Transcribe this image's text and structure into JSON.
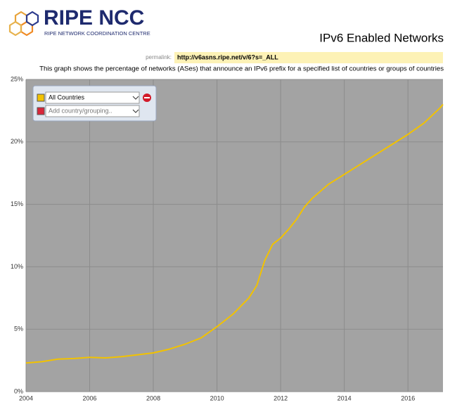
{
  "header": {
    "logo_text": "RIPE NCC",
    "logo_subtitle": "RIPE NETWORK COORDINATION CENTRE"
  },
  "permalink": {
    "label": "permalink:",
    "url": "http://v6asns.ripe.net/v/6?s=_ALL"
  },
  "controls": {
    "add_placeholder": "Add country/grouping.."
  },
  "chart_data": {
    "type": "line",
    "title": "IPv6 Enabled Networks",
    "subtitle": "This graph shows the percentage of networks (ASes) that announce an IPv6 prefix for a specified list of countries or groups of countries",
    "x": [
      2004,
      2004.5,
      2005,
      2005.5,
      2006,
      2006.5,
      2007,
      2007.5,
      2008,
      2008.5,
      2009,
      2009.5,
      2010,
      2010.5,
      2011,
      2011.25,
      2011.5,
      2011.75,
      2012,
      2012.25,
      2012.5,
      2012.75,
      2013,
      2013.5,
      2014,
      2014.5,
      2015,
      2015.5,
      2016,
      2016.5,
      2017,
      2017.1
    ],
    "series": [
      {
        "name": "All Countries",
        "color": "#f2c200",
        "values": [
          2.3,
          2.4,
          2.6,
          2.65,
          2.75,
          2.7,
          2.8,
          2.95,
          3.1,
          3.4,
          3.8,
          4.3,
          5.2,
          6.2,
          7.5,
          8.5,
          10.5,
          11.8,
          12.3,
          13.0,
          13.8,
          14.8,
          15.5,
          16.6,
          17.4,
          18.2,
          19.0,
          19.8,
          20.6,
          21.5,
          22.7,
          23.0
        ]
      }
    ],
    "xlim": [
      2004,
      2017.1
    ],
    "ylim": [
      0,
      25
    ],
    "xticks": [
      2004,
      2006,
      2008,
      2010,
      2012,
      2014,
      2016
    ],
    "yticks": [
      {
        "value": 0,
        "label": "0%"
      },
      {
        "value": 5,
        "label": "5%"
      },
      {
        "value": 10,
        "label": "10%"
      },
      {
        "value": 15,
        "label": "15%"
      },
      {
        "value": 20,
        "label": "20%"
      },
      {
        "value": 25,
        "label": "25%"
      }
    ],
    "grid": true,
    "background": "#a3a3a3",
    "grid_color": "#8c8c8c",
    "add_color": "#d9263a"
  }
}
